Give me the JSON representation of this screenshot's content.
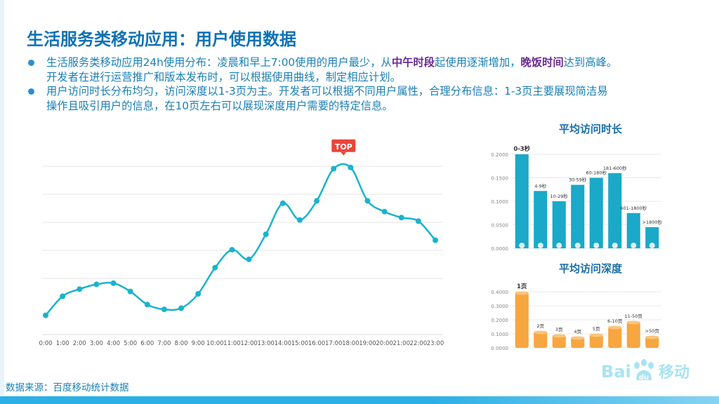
{
  "title": "生活服务类移动应用：用户使用数据",
  "bullets": {
    "b1_part1": "生活服务类移动应用24h使用分布：凌晨和早上7:00使用的用户最少，从",
    "b1_hl1": "中午时段",
    "b1_part2": "起使用逐渐增加，",
    "b1_hl2": "晚饭时间",
    "b1_part3": "达到高峰。",
    "b1_line2": "开发者在进行运营推广和版本发布时，可以根据使用曲线，制定相应计划。",
    "b2_line1": "用户访问时长分布均匀，访问深度以1-3页为主。开发者可以根据不同用户属性，合理分布信息：1-3页主要展现简洁易",
    "b2_line2": "操作且吸引用户的信息，在10页左右可以展现深度用户需要的特定信息。"
  },
  "source": "数据来源：百度移动统计数据",
  "logo": {
    "text_bai": "Bai",
    "text_du": "du",
    "text_mobile": "移动"
  },
  "colors": {
    "line": "#1ab3cd",
    "duration_bar": "#1aa9c8",
    "depth_bar": "#f7a640",
    "top_badge": "#e8463b",
    "title": "#0e72b5",
    "text": "#1a7fb5",
    "highlight": "#6a2b93"
  },
  "chart_data": [
    {
      "type": "line",
      "title": "",
      "top_label": "TOP",
      "categories": [
        "0:00",
        "1:00",
        "2:00",
        "3:00",
        "4:00",
        "5:00",
        "6:00",
        "7:00",
        "8:00",
        "9:00",
        "10:00",
        "11:00",
        "12:00",
        "13:00",
        "14:00",
        "15:00",
        "16:00",
        "17:00",
        "18:00",
        "19:00",
        "20:00",
        "21:00",
        "22:00",
        "23:00"
      ],
      "values": [
        12,
        28,
        34,
        38,
        39,
        32,
        21,
        17,
        18,
        30,
        52,
        67,
        59,
        80,
        106,
        92,
        108,
        135,
        136,
        108,
        99,
        94,
        91,
        75
      ],
      "ylim": [
        0,
        150
      ],
      "grid": true
    },
    {
      "type": "bar",
      "title": "平均访问时长",
      "categories": [
        "0-3秒",
        "4-9秒",
        "10-29秒",
        "30-59秒",
        "60-180秒",
        "181-600秒",
        "601-1800秒",
        ">1800秒"
      ],
      "values": [
        0.2,
        0.122,
        0.1,
        0.135,
        0.15,
        0.16,
        0.075,
        0.045
      ],
      "y_ticks": [
        "0.0000",
        "0.0500",
        "0.1000",
        "0.1500",
        "0.2000"
      ],
      "ylim": [
        0,
        0.2
      ],
      "grid": true
    },
    {
      "type": "bar",
      "title": "平均访问深度",
      "categories": [
        "1页",
        "2页",
        "3页",
        "4页",
        "5页",
        "6-10页",
        "11-50页",
        ">50页"
      ],
      "values": [
        0.4,
        0.12,
        0.095,
        0.08,
        0.1,
        0.155,
        0.19,
        0.085
      ],
      "y_ticks": [
        "0.0000",
        "0.1000",
        "0.2000",
        "0.3000",
        "0.4000"
      ],
      "ylim": [
        0,
        0.4
      ],
      "grid": true
    }
  ]
}
